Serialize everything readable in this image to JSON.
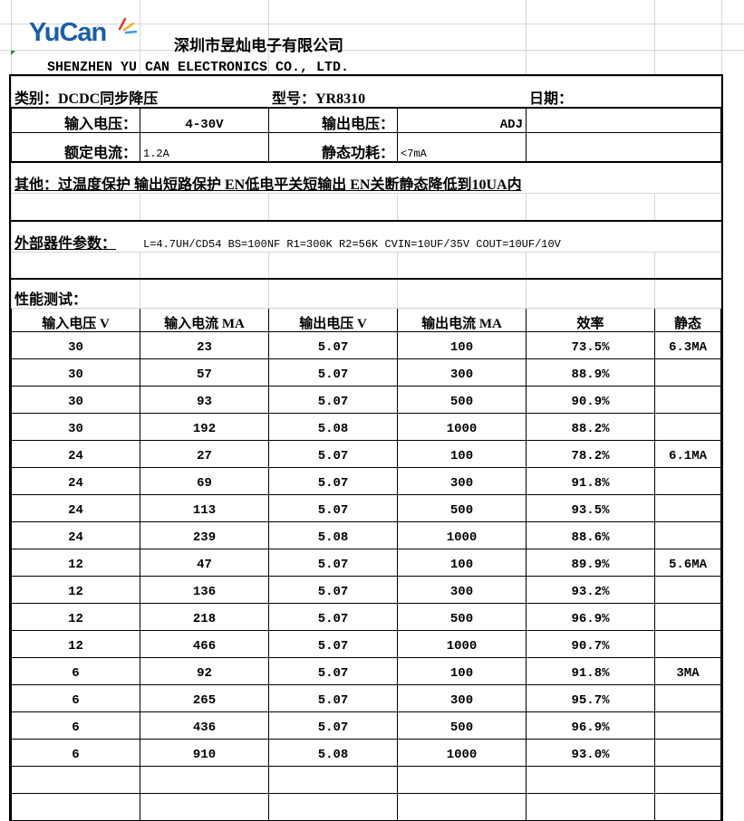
{
  "header": {
    "logo_text": "YuCan",
    "company_cn": "深圳市昱灿电子有限公司",
    "company_en": "SHENZHEN YU CAN ELECTRONICS CO., LTD."
  },
  "spec": {
    "category": "类别：DCDC同步降压",
    "model": "型号：YR8310",
    "date_label": "日期：",
    "input_voltage_label": "输入电压：",
    "input_voltage": "4-30V",
    "output_voltage_label": "输出电压：",
    "output_voltage": "ADJ",
    "rated_current_label": "额定电流：",
    "rated_current": "1.2A",
    "quiescent_label": "静态功耗：",
    "quiescent": "<7mA",
    "other": "其他：过温度保护  输出短路保护 EN低电平关短输出 EN关断静态降低到10UA内",
    "external_label": "外部器件参数：",
    "external": "L=4.7UH/CD54  BS=100NF  R1=300K R2=56K CVIN=10UF/35V COUT=10UF/10V",
    "perf_label": "性能测试："
  },
  "table": {
    "columns": [
      "输入电压 V",
      "输入电流 MA",
      "输出电压 V",
      "输出电流 MA",
      "效率",
      "静态"
    ],
    "rows": [
      [
        "30",
        "23",
        "5.07",
        "100",
        "73.5%",
        "6.3MA"
      ],
      [
        "30",
        "57",
        "5.07",
        "300",
        "88.9%",
        ""
      ],
      [
        "30",
        "93",
        "5.07",
        "500",
        "90.9%",
        ""
      ],
      [
        "30",
        "192",
        "5.08",
        "1000",
        "88.2%",
        ""
      ],
      [
        "24",
        "27",
        "5.07",
        "100",
        "78.2%",
        "6.1MA"
      ],
      [
        "24",
        "69",
        "5.07",
        "300",
        "91.8%",
        ""
      ],
      [
        "24",
        "113",
        "5.07",
        "500",
        "93.5%",
        ""
      ],
      [
        "24",
        "239",
        "5.08",
        "1000",
        "88.6%",
        ""
      ],
      [
        "12",
        "47",
        "5.07",
        "100",
        "89.9%",
        "5.6MA"
      ],
      [
        "12",
        "136",
        "5.07",
        "300",
        "93.2%",
        ""
      ],
      [
        "12",
        "218",
        "5.07",
        "500",
        "96.9%",
        ""
      ],
      [
        "12",
        "466",
        "5.07",
        "1000",
        "90.7%",
        ""
      ],
      [
        "6",
        "92",
        "5.07",
        "100",
        "91.8%",
        "3MA"
      ],
      [
        "6",
        "265",
        "5.07",
        "300",
        "95.7%",
        ""
      ],
      [
        "6",
        "436",
        "5.07",
        "500",
        "96.9%",
        ""
      ],
      [
        "6",
        "910",
        "5.08",
        "1000",
        "93.0%",
        ""
      ]
    ]
  },
  "colors": {
    "logo_blue": "#1a5ea8",
    "gridline": "#d6d6d6"
  }
}
